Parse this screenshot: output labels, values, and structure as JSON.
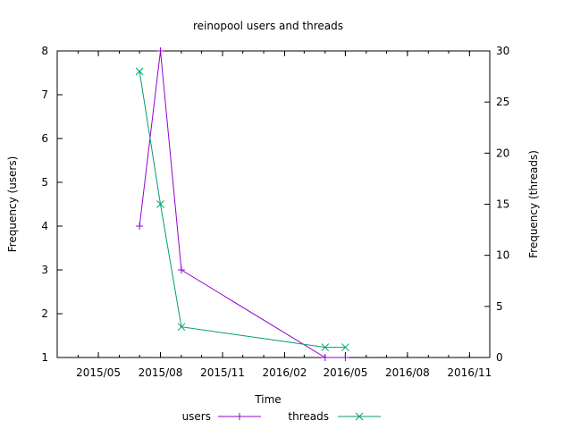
{
  "chart_data": {
    "type": "line",
    "title": "reinopool users and threads",
    "xlabel": "Time",
    "ylabel": "Frequency (users)",
    "y2label": "Frequency (threads)",
    "xlim": [
      "2015-03-01",
      "2016-12-01"
    ],
    "ylim": [
      1,
      8
    ],
    "y2lim": [
      0,
      30
    ],
    "x_ticks": [
      "2015/05",
      "2015/08",
      "2015/11",
      "2016/02",
      "2016/05",
      "2016/08",
      "2016/11"
    ],
    "y_ticks": [
      1,
      2,
      3,
      4,
      5,
      6,
      7,
      8
    ],
    "y2_ticks": [
      0,
      5,
      10,
      15,
      20,
      25,
      30
    ],
    "grid": false,
    "legend_position": "bottom-center",
    "series": [
      {
        "name": "users",
        "axis": "left",
        "color": "#9400d3",
        "marker": "plus",
        "x": [
          "2015-07-01",
          "2015-08-01",
          "2015-09-01",
          "2016-04-01",
          "2016-05-01"
        ],
        "y": [
          4,
          8,
          3,
          1,
          1
        ]
      },
      {
        "name": "threads",
        "axis": "right",
        "color": "#009e73",
        "marker": "cross",
        "x": [
          "2015-07-01",
          "2015-08-01",
          "2015-09-01",
          "2016-04-01",
          "2016-05-01"
        ],
        "y": [
          28,
          15,
          3,
          1,
          1
        ]
      }
    ]
  }
}
